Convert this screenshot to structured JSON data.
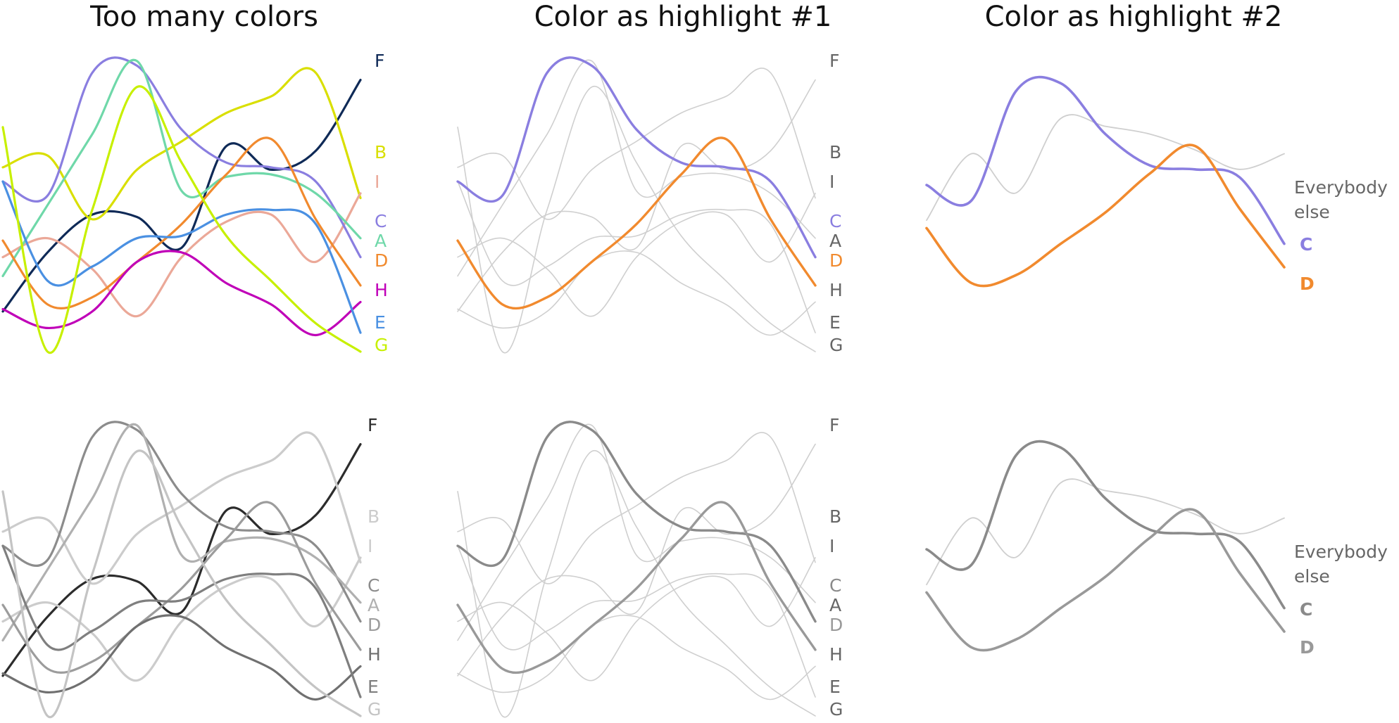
{
  "titles": [
    "Too many colors",
    "Color as highlight #1",
    "Color as highlight #2"
  ],
  "colors": {
    "A": "#6fd8a9",
    "B": "#d9df00",
    "C": "#8a7ee0",
    "D": "#f18a2e",
    "E": "#4a90e2",
    "F": "#0f2a57",
    "G": "#c7f000",
    "H": "#c000b8",
    "I": "#eba898",
    "context": "#cfcfcf",
    "context_label": "#666666",
    "highlight_C": "#8a7ee0",
    "highlight_D": "#f18a2e",
    "gray_shades": {
      "F": "#2c2c2c",
      "B": "#cccccc",
      "I": "#cccccc",
      "C": "#8c8c8c",
      "A": "#b0b0b0",
      "D": "#9c9c9c",
      "H": "#707070",
      "E": "#7f7f7f",
      "G": "#c4c4c4"
    },
    "bw_highlight_C": "#8a8a8a",
    "bw_highlight_D": "#999999"
  },
  "chart_data": [
    {
      "type": "line",
      "title": "Too many colors",
      "x": [
        0,
        1,
        2,
        3,
        4,
        5,
        6,
        7,
        8
      ],
      "series": [
        {
          "name": "F",
          "values": [
            17,
            42,
            58,
            57,
            44,
            87,
            77,
            85,
            115
          ]
        },
        {
          "name": "B",
          "values": [
            78,
            83,
            56,
            77,
            89,
            101,
            108,
            118,
            65
          ]
        },
        {
          "name": "I",
          "values": [
            40,
            48,
            35,
            15,
            40,
            55,
            58,
            38,
            67
          ]
        },
        {
          "name": "C",
          "values": [
            72,
            66,
            118,
            121,
            94,
            80,
            78,
            72,
            40
          ]
        },
        {
          "name": "A",
          "values": [
            32,
            62,
            92,
            123,
            68,
            74,
            75,
            67,
            48
          ]
        },
        {
          "name": "D",
          "values": [
            47,
            20,
            23,
            38,
            54,
            75,
            90,
            56,
            28
          ]
        },
        {
          "name": "H",
          "values": [
            18,
            10,
            17,
            38,
            42,
            29,
            20,
            7,
            21
          ]
        },
        {
          "name": "E",
          "values": [
            72,
            30,
            36,
            48,
            49,
            58,
            60,
            54,
            8
          ]
        },
        {
          "name": "G",
          "values": [
            95,
            0,
            60,
            112,
            80,
            49,
            30,
            12,
            0
          ]
        }
      ],
      "labels_order": [
        "F",
        "B",
        "I",
        "C",
        "A",
        "D",
        "H",
        "E",
        "G"
      ]
    },
    {
      "type": "line",
      "title": "Color as highlight #1",
      "x": [
        0,
        1,
        2,
        3,
        4,
        5,
        6,
        7,
        8
      ],
      "highlighted": [
        "C",
        "D"
      ],
      "labels_order": [
        "F",
        "B",
        "I",
        "C",
        "A",
        "D",
        "H",
        "E",
        "G"
      ]
    },
    {
      "type": "line",
      "title": "Color as highlight #2",
      "x": [
        0,
        1,
        2,
        3,
        4,
        5,
        6,
        7,
        8
      ],
      "series": [
        {
          "name": "C",
          "values": [
            70,
            62,
            118,
            122,
            96,
            80,
            78,
            74,
            40
          ]
        },
        {
          "name": "D",
          "values": [
            48,
            20,
            24,
            40,
            56,
            76,
            90,
            58,
            28
          ]
        },
        {
          "name": "Everybody else",
          "values": [
            52,
            86,
            66,
            104,
            100,
            96,
            88,
            78,
            86
          ]
        }
      ],
      "labels": {
        "context": "Everybody\nelse",
        "context_line1": "Everybody",
        "context_line2": "else",
        "C": "C",
        "D": "D"
      }
    }
  ]
}
